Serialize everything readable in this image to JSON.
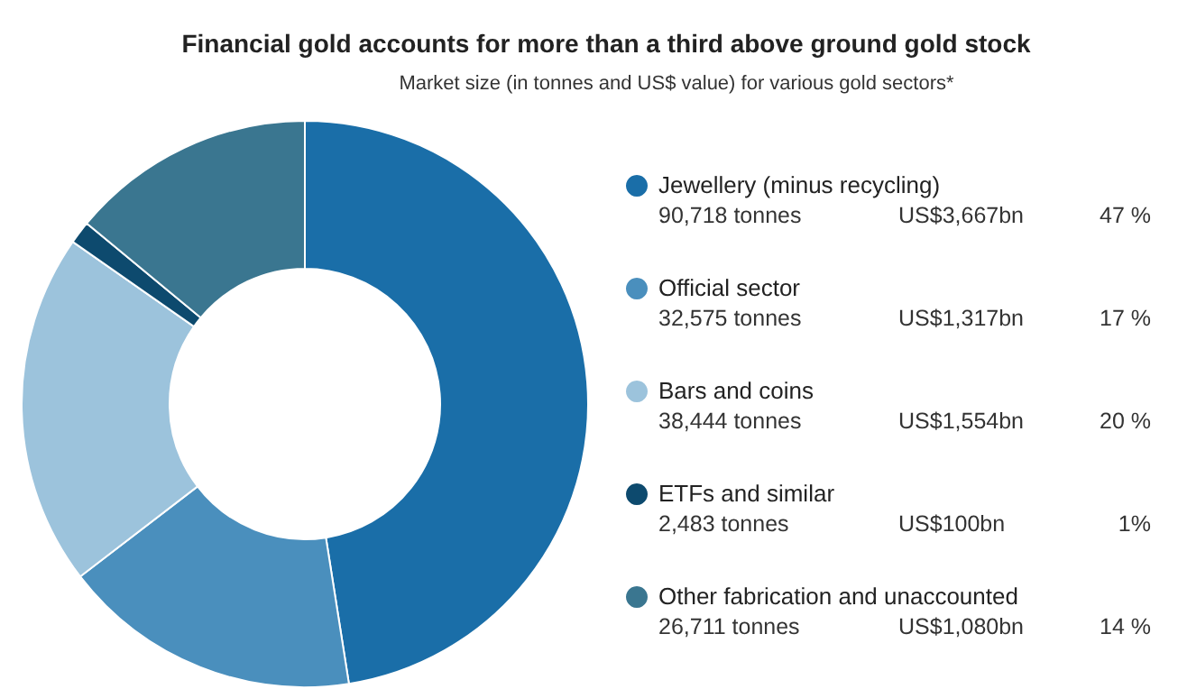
{
  "chart_data": {
    "type": "donut",
    "title": "Financial gold accounts for more than a third above ground gold stock",
    "subtitle": "Market size (in tonnes and US$ value) for various gold sectors*",
    "categories": [
      "Jewellery (minus recycling)",
      "Official sector",
      "Bars and coins",
      "ETFs and similar",
      "Other fabrication and unaccounted"
    ],
    "values": [
      90718,
      32575,
      38444,
      2483,
      26711
    ],
    "value_labels": [
      "90,718 tonnes",
      "32,575 tonnes",
      "38,444 tonnes",
      "2,483 tonnes",
      "26,711 tonnes"
    ],
    "colors": [
      "#1a6ea8",
      "#4a8fbd",
      "#9cc3dc",
      "#0d4a6e",
      "#3a7690"
    ],
    "annotations": [
      "US$3,667bn",
      "47 %",
      "US$1,317bn",
      "17 %",
      "US$1,554bn",
      "20 %",
      "US$100bn",
      "1%",
      "US$1,080bn",
      "14 %"
    ],
    "legend": "right"
  }
}
